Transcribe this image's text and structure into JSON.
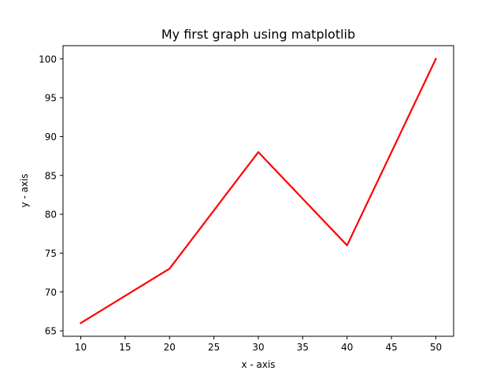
{
  "chart_data": {
    "type": "line",
    "title": "My first graph using matplotlib",
    "xlabel": "x - axis",
    "ylabel": "y - axis",
    "x": [
      10,
      20,
      30,
      40,
      50
    ],
    "series": [
      {
        "values": [
          66,
          73,
          88,
          76,
          100
        ],
        "color": "#ff0000"
      }
    ],
    "xlim": [
      8,
      52
    ],
    "ylim": [
      64.3,
      101.7
    ],
    "xticks": [
      "10",
      "15",
      "20",
      "25",
      "30",
      "35",
      "40",
      "45",
      "50"
    ],
    "yticks": [
      "65",
      "70",
      "75",
      "80",
      "85",
      "90",
      "95",
      "100"
    ],
    "grid": false,
    "legend": "none"
  }
}
